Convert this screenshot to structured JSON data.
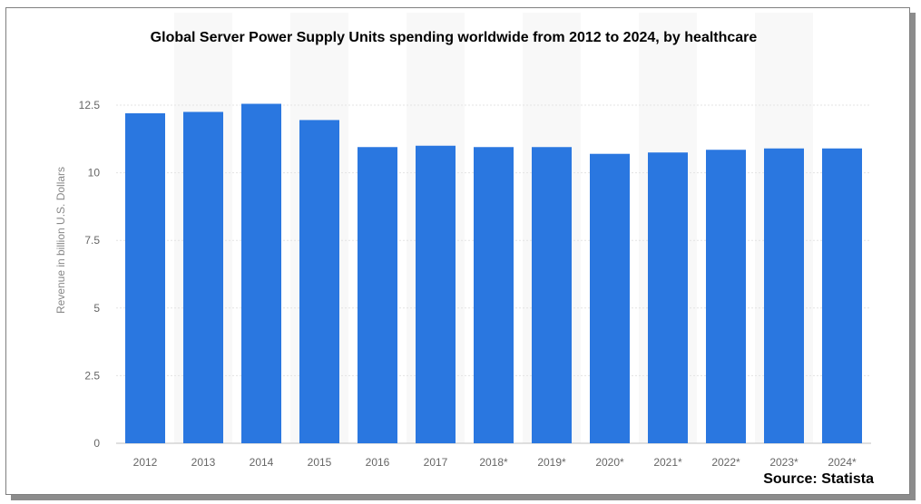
{
  "chart_data": {
    "type": "bar",
    "title": "Global Server Power Supply Units spending worldwide from 2012 to 2024, by healthcare",
    "xlabel": "",
    "ylabel": "Revenue in billion U.S. Dollars",
    "categories": [
      "2012",
      "2013",
      "2014",
      "2015",
      "2016",
      "2017",
      "2018*",
      "2019*",
      "2020*",
      "2021*",
      "2022*",
      "2023*",
      "2024*"
    ],
    "values": [
      12.2,
      12.25,
      12.55,
      11.95,
      10.95,
      11.0,
      10.95,
      10.95,
      10.7,
      10.75,
      10.85,
      10.9,
      10.9
    ],
    "ylim": [
      0,
      12.5
    ],
    "yticks": [
      0,
      2.5,
      5,
      7.5,
      10,
      12.5
    ],
    "ytick_labels": [
      "0",
      "2.5",
      "5",
      "7.5",
      "10",
      "12.5"
    ],
    "grid": true,
    "bar_color": "#2a77e0",
    "source": "Source: Statista"
  }
}
